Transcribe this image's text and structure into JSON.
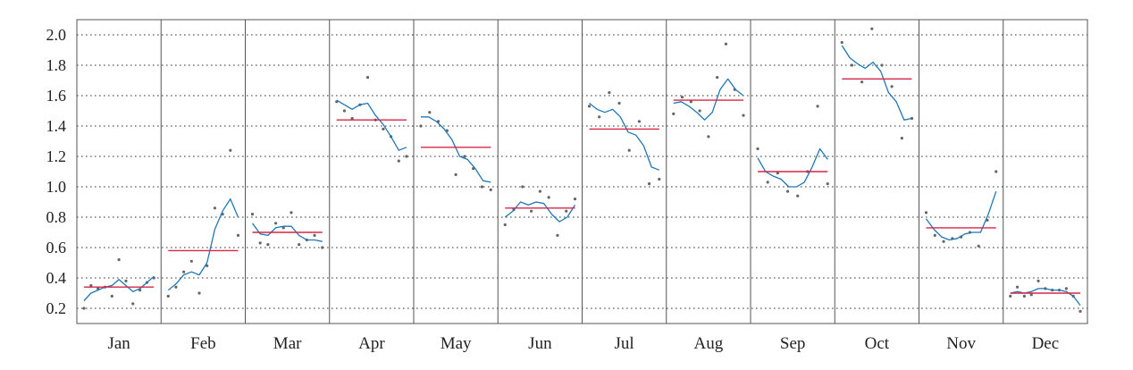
{
  "chart_data": {
    "type": "line",
    "title": "",
    "xlabel": "",
    "ylabel": "",
    "ylim": [
      0.1,
      2.1
    ],
    "y_ticks": [
      "0.2",
      "0.4",
      "0.6",
      "0.8",
      "1.0",
      "1.2",
      "1.4",
      "1.6",
      "1.8",
      "2.0"
    ],
    "grid": "horizontal dotted",
    "colors": {
      "line": "#1f77b4",
      "mean": "#d62746",
      "points": "#666666",
      "grid": "#333333",
      "frame": "#555555"
    },
    "months": [
      {
        "name": "Jan",
        "mean": 0.34,
        "points": [
          0.2,
          0.35,
          0.33,
          0.34,
          0.28,
          0.52,
          0.38,
          0.23,
          0.32,
          0.37,
          0.4
        ],
        "line": [
          0.25,
          0.3,
          0.32,
          0.34,
          0.35,
          0.39,
          0.35,
          0.31,
          0.33,
          0.37,
          0.41
        ]
      },
      {
        "name": "Feb",
        "mean": 0.58,
        "points": [
          0.28,
          0.34,
          0.44,
          0.51,
          0.3,
          0.48,
          0.86,
          0.82,
          1.24,
          0.68
        ],
        "line": [
          0.32,
          0.36,
          0.42,
          0.44,
          0.42,
          0.5,
          0.72,
          0.84,
          0.92,
          0.8
        ]
      },
      {
        "name": "Mar",
        "mean": 0.7,
        "points": [
          0.82,
          0.63,
          0.62,
          0.76,
          0.73,
          0.83,
          0.62,
          0.65,
          0.68,
          0.6
        ],
        "line": [
          0.76,
          0.69,
          0.68,
          0.73,
          0.74,
          0.74,
          0.68,
          0.65,
          0.65,
          0.64
        ]
      },
      {
        "name": "Apr",
        "mean": 1.44,
        "points": [
          1.56,
          1.5,
          1.45,
          1.54,
          1.72,
          1.44,
          1.38,
          1.33,
          1.17,
          1.2
        ],
        "line": [
          1.57,
          1.54,
          1.51,
          1.54,
          1.55,
          1.47,
          1.41,
          1.33,
          1.24,
          1.26
        ]
      },
      {
        "name": "May",
        "mean": 1.26,
        "points": [
          1.4,
          1.49,
          1.43,
          1.37,
          1.08,
          1.2,
          1.12,
          1.0,
          0.98
        ],
        "line": [
          1.46,
          1.46,
          1.43,
          1.38,
          1.31,
          1.2,
          1.18,
          1.12,
          1.04,
          1.03
        ]
      },
      {
        "name": "Jun",
        "mean": 0.86,
        "points": [
          0.75,
          0.85,
          1.0,
          0.84,
          0.97,
          0.93,
          0.68,
          0.84,
          0.92
        ],
        "line": [
          0.8,
          0.84,
          0.9,
          0.88,
          0.9,
          0.89,
          0.82,
          0.77,
          0.8,
          0.88
        ]
      },
      {
        "name": "Jul",
        "mean": 1.38,
        "points": [
          1.53,
          1.46,
          1.62,
          1.55,
          1.24,
          1.43,
          1.02,
          1.05
        ],
        "line": [
          1.55,
          1.51,
          1.49,
          1.51,
          1.46,
          1.36,
          1.34,
          1.27,
          1.13,
          1.11
        ]
      },
      {
        "name": "Aug",
        "mean": 1.57,
        "points": [
          1.48,
          1.59,
          1.56,
          1.5,
          1.33,
          1.72,
          1.94,
          1.64,
          1.47
        ],
        "line": [
          1.55,
          1.56,
          1.53,
          1.49,
          1.44,
          1.49,
          1.64,
          1.71,
          1.64,
          1.6
        ]
      },
      {
        "name": "Sep",
        "mean": 1.1,
        "points": [
          1.25,
          1.03,
          1.09,
          0.97,
          0.94,
          1.1,
          1.53,
          1.02
        ],
        "line": [
          1.19,
          1.1,
          1.07,
          1.05,
          1.0,
          1.0,
          1.03,
          1.13,
          1.25,
          1.18
        ]
      },
      {
        "name": "Oct",
        "mean": 1.71,
        "points": [
          1.95,
          1.8,
          1.69,
          2.04,
          1.8,
          1.66,
          1.32,
          1.45
        ],
        "line": [
          1.93,
          1.85,
          1.81,
          1.78,
          1.82,
          1.76,
          1.62,
          1.56,
          1.44,
          1.45
        ]
      },
      {
        "name": "Nov",
        "mean": 0.73,
        "points": [
          0.83,
          0.68,
          0.64,
          0.66,
          0.67,
          0.7,
          0.61,
          0.78,
          1.1
        ],
        "line": [
          0.79,
          0.72,
          0.67,
          0.65,
          0.66,
          0.69,
          0.7,
          0.7,
          0.82,
          0.97
        ]
      },
      {
        "name": "Dec",
        "mean": 0.3,
        "points": [
          0.28,
          0.34,
          0.28,
          0.29,
          0.38,
          0.33,
          0.32,
          0.32,
          0.33,
          0.28,
          0.18
        ],
        "line": [
          0.3,
          0.31,
          0.3,
          0.31,
          0.33,
          0.33,
          0.32,
          0.32,
          0.31,
          0.28,
          0.22
        ]
      }
    ]
  }
}
